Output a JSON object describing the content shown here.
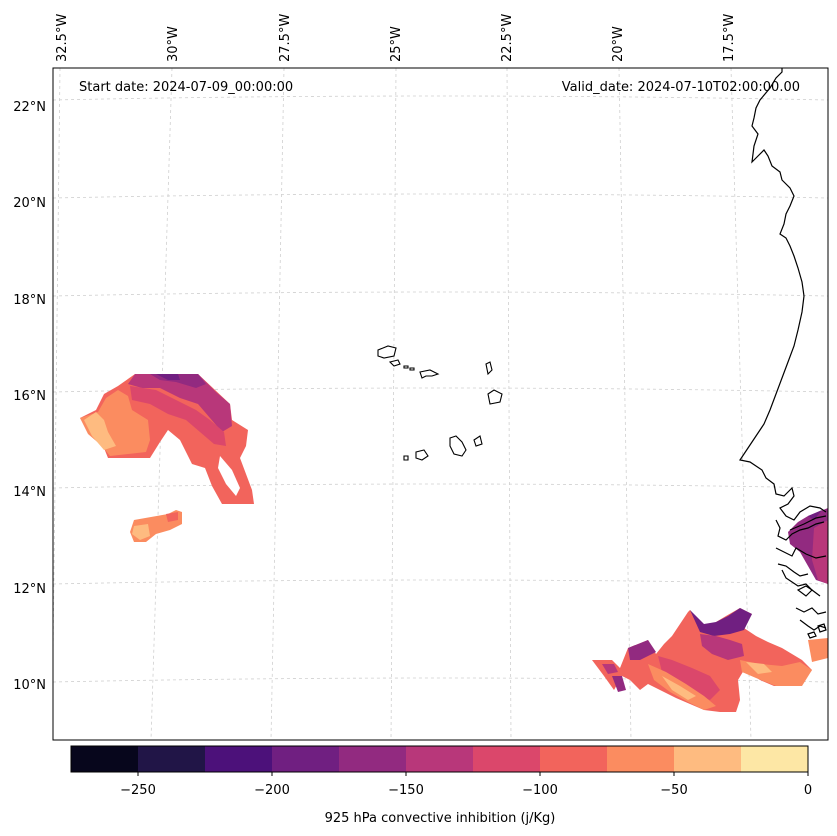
{
  "header": {
    "start_date": "Start date: 2024-07-09_00:00:00",
    "valid_date": "Valid_date: 2024-07-10T02:00:00.00"
  },
  "axes": {
    "lon_labels": [
      "32.5°W",
      "30°W",
      "27.5°W",
      "25°W",
      "22.5°W",
      "20°W",
      "17.5°W"
    ],
    "lat_labels": [
      "22°N",
      "20°N",
      "18°N",
      "16°N",
      "14°N",
      "12°N",
      "10°N"
    ]
  },
  "colorbar": {
    "title": "925 hPa convective inhibition (j/Kg)",
    "tick_labels": [
      "−250",
      "−200",
      "−150",
      "−100",
      "−50",
      "0"
    ],
    "colors": [
      "#07061c",
      "#211547",
      "#4c117a",
      "#701f81",
      "#922a80",
      "#b8377a",
      "#db476b",
      "#f2645c",
      "#fb8c60",
      "#febb80",
      "#fde7a5"
    ]
  },
  "chart_data": {
    "type": "heatmap",
    "title": "925 hPa convective inhibition (j/Kg)",
    "variable": "925 hPa convective inhibition",
    "units": "j/Kg",
    "levels": [
      -275,
      -250,
      -225,
      -200,
      -175,
      -150,
      -125,
      -100,
      -75,
      -50,
      -25,
      0
    ],
    "colorbar_range": [
      -275,
      0
    ],
    "lon_ticks": [
      -32.5,
      -30,
      -27.5,
      -25,
      -22.5,
      -20,
      -17.5
    ],
    "lat_ticks": [
      22,
      20,
      18,
      16,
      14,
      12,
      10
    ],
    "regions": [
      {
        "name": "West Atlantic cluster near 15N 30W",
        "min_value": -175,
        "max_value": -25
      },
      {
        "name": "Small patch near 13N 30.5W",
        "min_value": -75,
        "max_value": -25
      },
      {
        "name": "South-east cluster near 10N 18W",
        "min_value": -175,
        "max_value": -25
      },
      {
        "name": "Coastal Senegal/Gambia patch",
        "min_value": -175,
        "max_value": -100
      }
    ]
  }
}
